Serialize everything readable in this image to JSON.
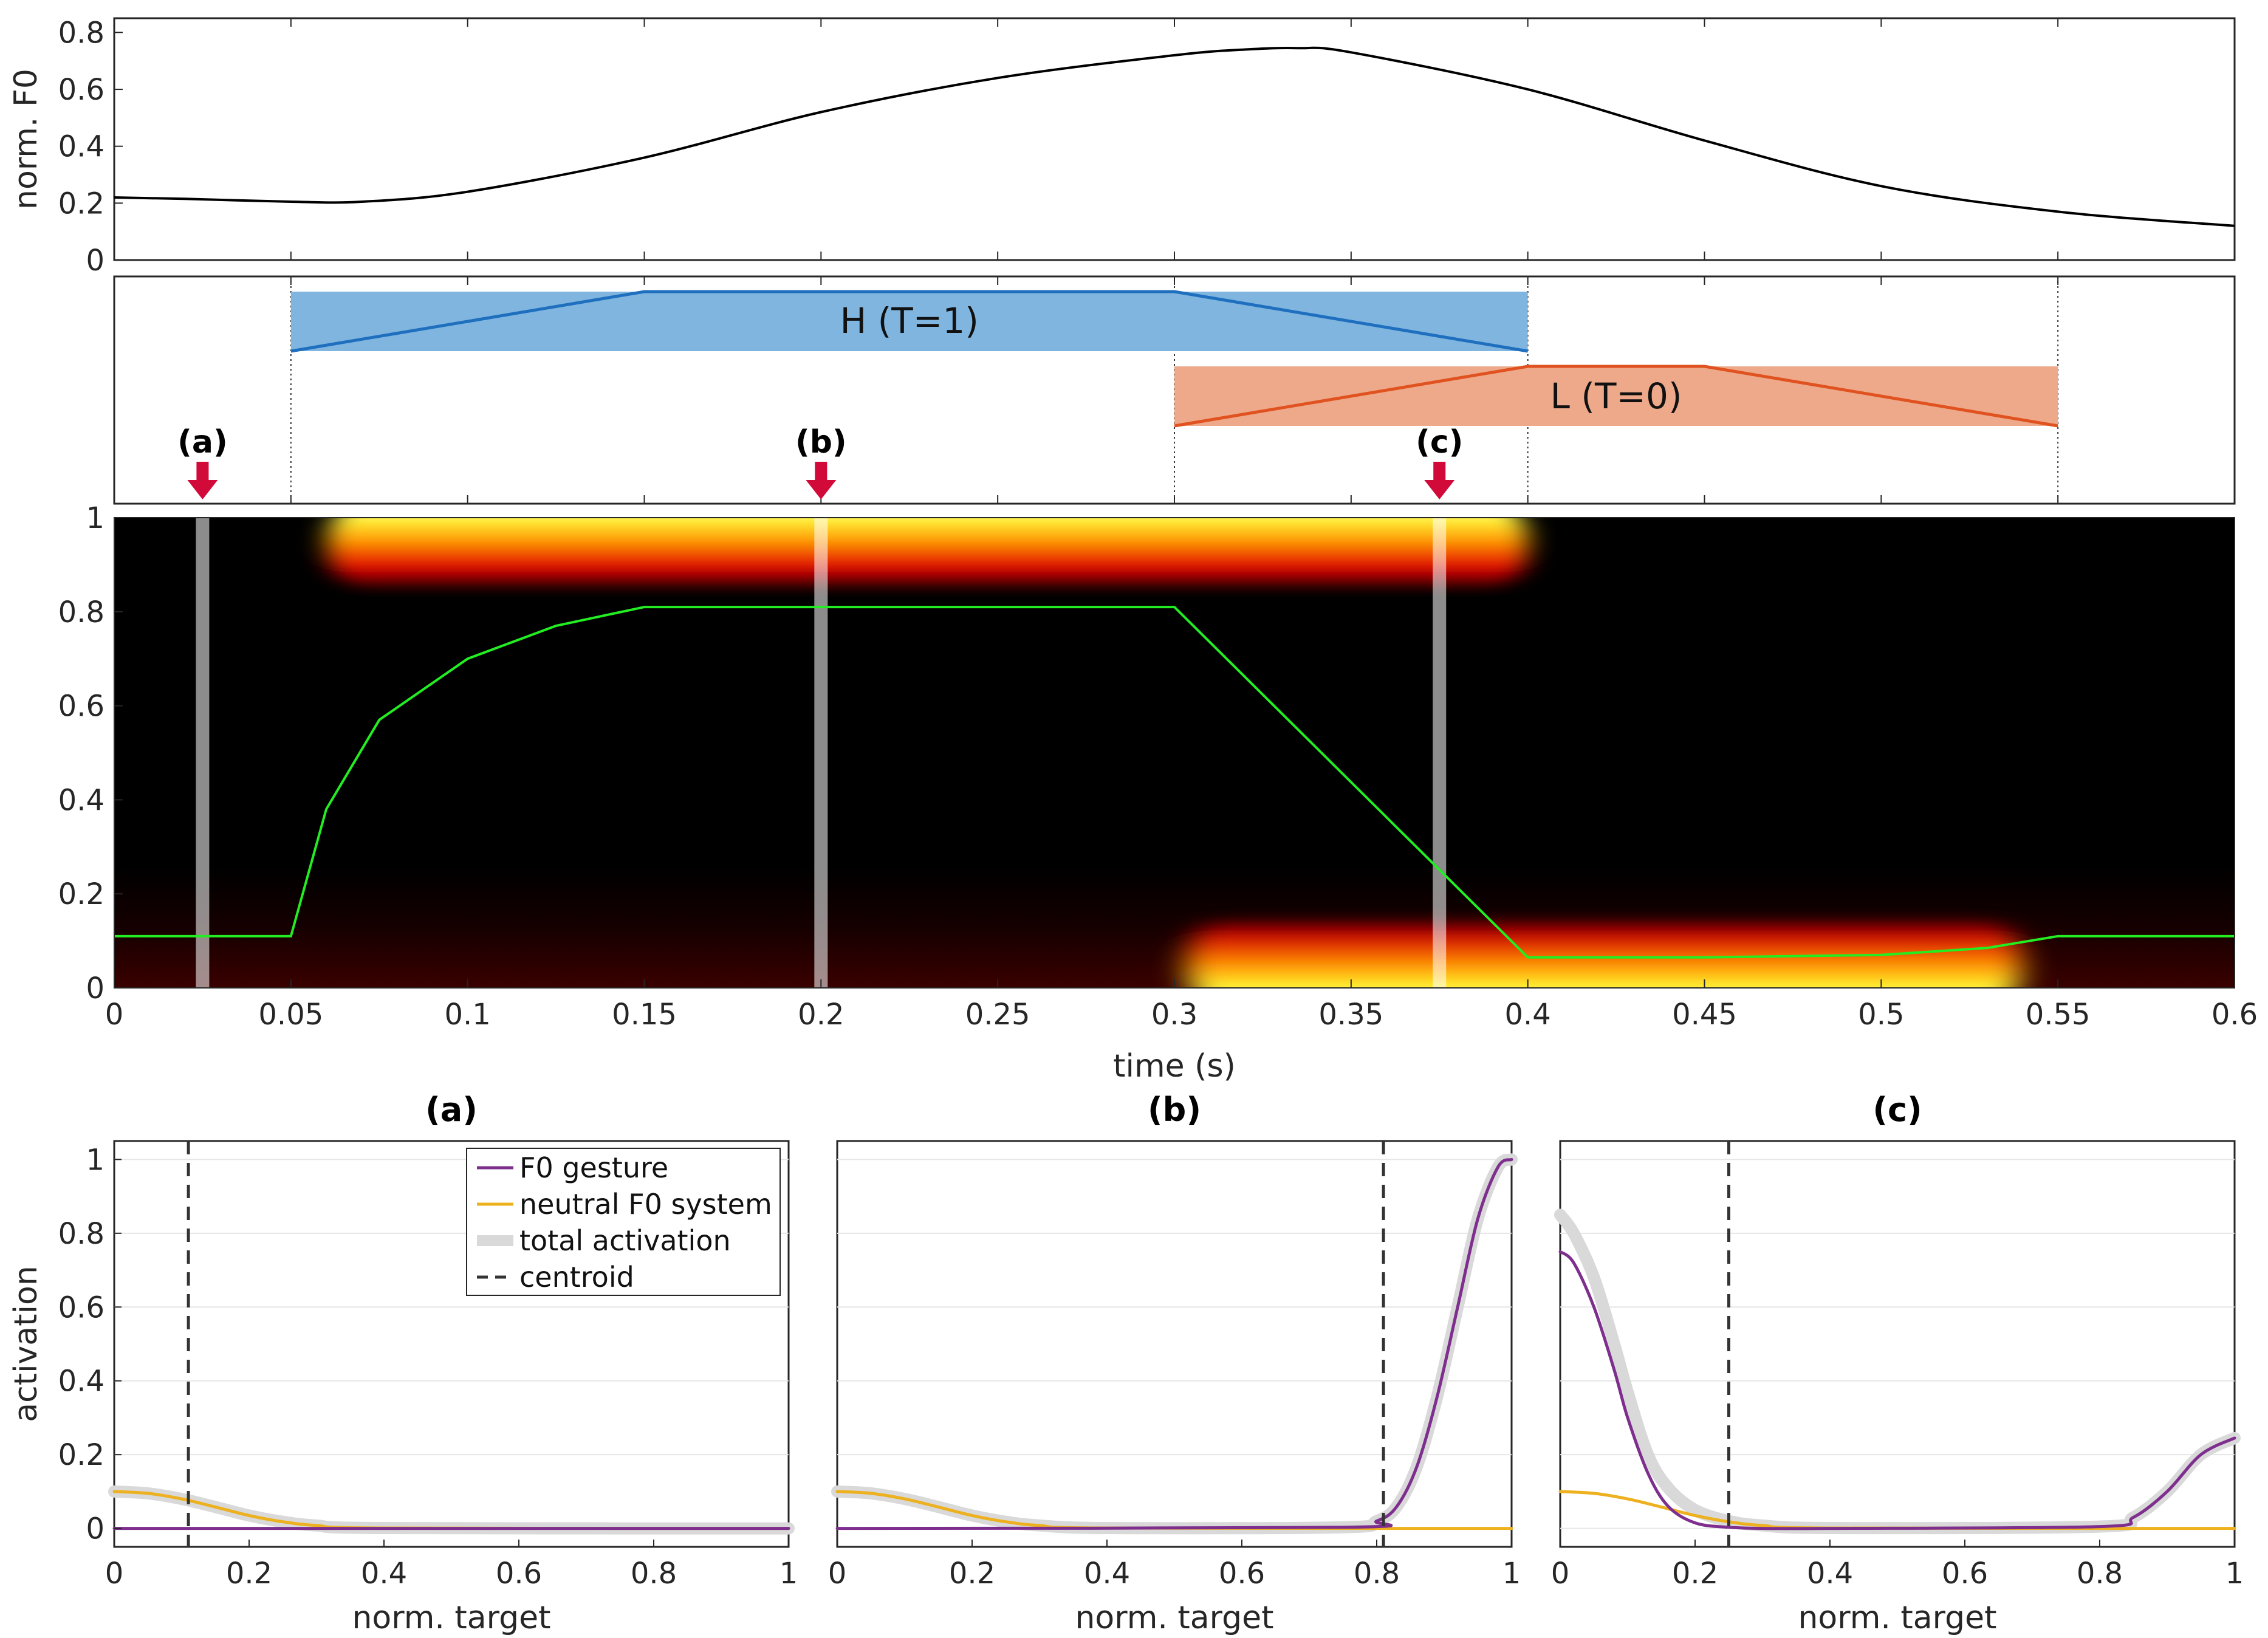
{
  "chart_data": [
    {
      "type": "line",
      "panel": "f0-contour",
      "ylabel": "norm. F0",
      "xlim": [
        0,
        0.6
      ],
      "ylim": [
        0,
        0.85
      ],
      "yticks": [
        "0",
        "0.2",
        "0.4",
        "0.6",
        "0.8"
      ],
      "series": [
        {
          "color": "#000000",
          "x": [
            0,
            0.02,
            0.05,
            0.07,
            0.1,
            0.15,
            0.2,
            0.25,
            0.3,
            0.32,
            0.335,
            0.35,
            0.4,
            0.45,
            0.5,
            0.55,
            0.6
          ],
          "y": [
            0.22,
            0.215,
            0.205,
            0.205,
            0.24,
            0.36,
            0.52,
            0.64,
            0.72,
            0.74,
            0.745,
            0.73,
            0.6,
            0.42,
            0.26,
            0.17,
            0.12
          ]
        }
      ]
    },
    {
      "type": "gestural-score",
      "panel": "gestures",
      "xlim": [
        0,
        0.6
      ],
      "gestures": [
        {
          "label": "H (T=1)",
          "start": 0.05,
          "end": 0.4,
          "ramp": [
            [
              0.05,
              0.0
            ],
            [
              0.15,
              1.0
            ],
            [
              0.3,
              1.0
            ],
            [
              0.4,
              0.0
            ]
          ],
          "fill": "#7fb5df",
          "line": "#1f6fbf"
        },
        {
          "label": "L (T=0)",
          "start": 0.3,
          "end": 0.55,
          "ramp": [
            [
              0.3,
              0.0
            ],
            [
              0.4,
              1.0
            ],
            [
              0.45,
              1.0
            ],
            [
              0.55,
              0.0
            ]
          ],
          "fill": "#eda98a",
          "line": "#e0521f"
        }
      ],
      "boundaries": [
        0.05,
        0.3,
        0.4,
        0.55
      ],
      "markers": [
        {
          "label": "(a)",
          "t": 0.025
        },
        {
          "label": "(b)",
          "t": 0.2
        },
        {
          "label": "(c)",
          "t": 0.375
        }
      ]
    },
    {
      "type": "heatmap",
      "panel": "activation-field",
      "xlabel": "time (s)",
      "xlim": [
        0,
        0.6
      ],
      "ylim": [
        0,
        1
      ],
      "xticks": [
        "0",
        "0.05",
        "0.1",
        "0.15",
        "0.2",
        "0.25",
        "0.3",
        "0.35",
        "0.4",
        "0.45",
        "0.5",
        "0.55",
        "0.6"
      ],
      "yticks": [
        "0",
        "0.2",
        "0.4",
        "0.6",
        "0.8",
        "1"
      ],
      "colormap": "hot",
      "centroid": {
        "color": "#22ee22",
        "x": [
          0,
          0.05,
          0.06,
          0.075,
          0.1,
          0.125,
          0.15,
          0.3,
          0.4,
          0.45,
          0.5,
          0.53,
          0.55,
          0.6
        ],
        "y": [
          0.11,
          0.11,
          0.38,
          0.57,
          0.7,
          0.77,
          0.81,
          0.81,
          0.065,
          0.065,
          0.07,
          0.085,
          0.11,
          0.11
        ]
      },
      "time_slices": [
        0.025,
        0.2,
        0.375
      ]
    },
    {
      "type": "line",
      "panel": "slice-a",
      "title": "(a)",
      "xlabel": "norm. target",
      "ylabel": "activation",
      "xlim": [
        0,
        1
      ],
      "ylim": [
        -0.05,
        1.05
      ],
      "xticks": [
        "0",
        "0.2",
        "0.4",
        "0.6",
        "0.8",
        "1"
      ],
      "yticks": [
        "0",
        "0.2",
        "0.4",
        "0.6",
        "0.8",
        "1"
      ],
      "centroid": 0.11,
      "series": [
        {
          "name": "F0 gesture",
          "color": "#7e2f8e",
          "x": [
            0,
            1
          ],
          "y": [
            0,
            0
          ]
        },
        {
          "name": "neutral F0 system",
          "color": "#edb120",
          "x": [
            0,
            0.05,
            0.1,
            0.15,
            0.2,
            0.25,
            0.3,
            0.4,
            1
          ],
          "y": [
            0.1,
            0.095,
            0.08,
            0.058,
            0.035,
            0.018,
            0.008,
            0.001,
            0
          ]
        },
        {
          "name": "total activation",
          "color": "#d9d9d9",
          "x": [
            0,
            0.05,
            0.1,
            0.15,
            0.2,
            0.25,
            0.3,
            0.4,
            1
          ],
          "y": [
            0.1,
            0.095,
            0.08,
            0.058,
            0.035,
            0.018,
            0.008,
            0.001,
            0
          ]
        }
      ],
      "legend": {
        "placement": "top-center",
        "entries": [
          "F0 gesture",
          "neutral F0 system",
          "total activation",
          "centroid"
        ]
      }
    },
    {
      "type": "line",
      "panel": "slice-b",
      "title": "(b)",
      "xlabel": "norm. target",
      "xlim": [
        0,
        1
      ],
      "ylim": [
        -0.05,
        1.05
      ],
      "xticks": [
        "0",
        "0.2",
        "0.4",
        "0.6",
        "0.8",
        "1"
      ],
      "centroid": 0.81,
      "series": [
        {
          "color": "#7e2f8e",
          "x": [
            0,
            0.75,
            0.8,
            0.83,
            0.86,
            0.89,
            0.92,
            0.95,
            0.98,
            1
          ],
          "y": [
            0,
            0.003,
            0.02,
            0.06,
            0.17,
            0.36,
            0.6,
            0.84,
            0.98,
            1.0
          ]
        },
        {
          "color": "#edb120",
          "x": [
            0,
            0.05,
            0.1,
            0.15,
            0.2,
            0.25,
            0.3,
            0.4,
            1
          ],
          "y": [
            0.1,
            0.095,
            0.08,
            0.058,
            0.035,
            0.018,
            0.008,
            0.001,
            0
          ]
        },
        {
          "color": "#d9d9d9",
          "x": [
            0,
            0.05,
            0.1,
            0.15,
            0.2,
            0.25,
            0.3,
            0.4,
            0.75,
            0.8,
            0.83,
            0.86,
            0.89,
            0.92,
            0.95,
            0.98,
            1
          ],
          "y": [
            0.1,
            0.095,
            0.08,
            0.058,
            0.035,
            0.018,
            0.008,
            0.001,
            0.003,
            0.02,
            0.06,
            0.17,
            0.36,
            0.6,
            0.84,
            0.98,
            1.0
          ]
        }
      ]
    },
    {
      "type": "line",
      "panel": "slice-c",
      "title": "(c)",
      "xlabel": "norm. target",
      "xlim": [
        0,
        1
      ],
      "ylim": [
        -0.05,
        1.05
      ],
      "xticks": [
        "0",
        "0.2",
        "0.4",
        "0.6",
        "0.8",
        "1"
      ],
      "centroid": 0.25,
      "series": [
        {
          "color": "#7e2f8e",
          "x": [
            0,
            0.02,
            0.05,
            0.08,
            0.1,
            0.13,
            0.16,
            0.2,
            0.25,
            0.3,
            0.4,
            0.8,
            0.85,
            0.9,
            0.95,
            1
          ],
          "y": [
            0.75,
            0.72,
            0.6,
            0.43,
            0.3,
            0.15,
            0.06,
            0.015,
            0.003,
            0,
            0,
            0.005,
            0.03,
            0.1,
            0.2,
            0.245
          ]
        },
        {
          "color": "#edb120",
          "x": [
            0,
            0.05,
            0.1,
            0.15,
            0.2,
            0.25,
            0.3,
            0.4,
            1
          ],
          "y": [
            0.1,
            0.095,
            0.08,
            0.058,
            0.035,
            0.018,
            0.008,
            0.001,
            0
          ]
        },
        {
          "color": "#d9d9d9",
          "x": [
            0,
            0.02,
            0.05,
            0.08,
            0.1,
            0.13,
            0.16,
            0.2,
            0.25,
            0.3,
            0.4,
            0.8,
            0.85,
            0.9,
            0.95,
            1
          ],
          "y": [
            0.85,
            0.8,
            0.68,
            0.5,
            0.37,
            0.2,
            0.11,
            0.05,
            0.02,
            0.008,
            0.001,
            0.005,
            0.03,
            0.1,
            0.2,
            0.245
          ]
        }
      ]
    }
  ]
}
